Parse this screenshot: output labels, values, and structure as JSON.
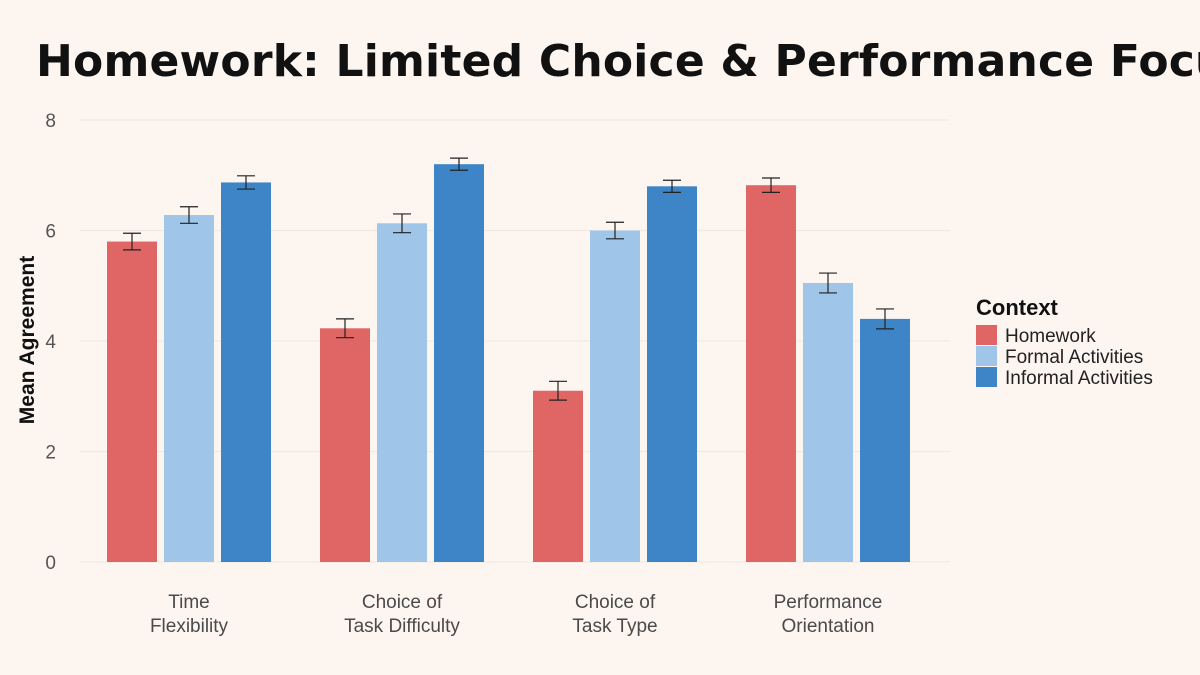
{
  "chart_data": {
    "type": "bar",
    "title": "Homework: Limited Choice & Performance Focus",
    "ylabel": "Mean Agreement",
    "xlabel": "",
    "ylim": [
      0,
      8
    ],
    "yticks": [
      "0",
      "2",
      "4",
      "6",
      "8"
    ],
    "grid": true,
    "categories": [
      [
        "Time",
        "Flexibility"
      ],
      [
        "Choice of",
        "Task Difficulty"
      ],
      [
        "Choice of",
        "Task Type"
      ],
      [
        "Performance",
        "Orientation"
      ]
    ],
    "series": [
      {
        "name": "Homework",
        "color": "#e06666",
        "values": [
          5.8,
          4.23,
          3.1,
          6.82
        ],
        "errors": [
          0.15,
          0.17,
          0.17,
          0.13
        ]
      },
      {
        "name": "Formal Activities",
        "color": "#9fc5e8",
        "values": [
          6.28,
          6.13,
          6.0,
          5.05
        ],
        "errors": [
          0.15,
          0.17,
          0.15,
          0.18
        ]
      },
      {
        "name": "Informal Activities",
        "color": "#3d85c6",
        "values": [
          6.87,
          7.2,
          6.8,
          4.4
        ],
        "errors": [
          0.12,
          0.11,
          0.11,
          0.18
        ]
      }
    ],
    "legend": {
      "title": "Context",
      "position": "right"
    }
  }
}
